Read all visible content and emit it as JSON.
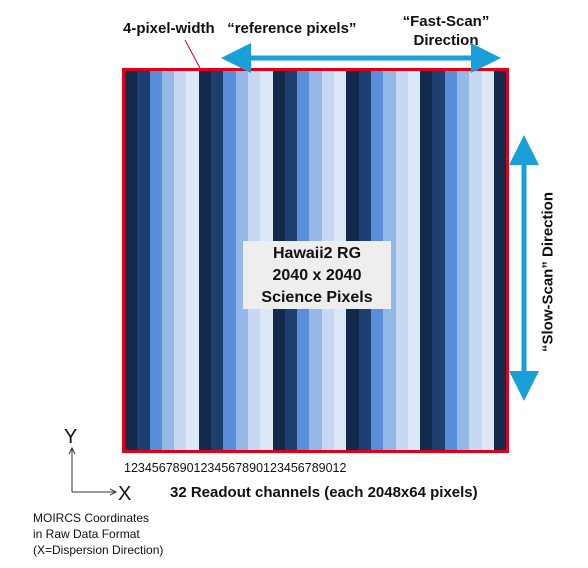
{
  "labels": {
    "reference_prefix": "4-pixel-width",
    "reference_quoted": "“reference pixels”",
    "fast_scan_line1": "“Fast-Scan”",
    "fast_scan_line2": "Direction",
    "slow_scan": "“Slow-Scan”  Direction",
    "science_line1": "Hawaii2 RG",
    "science_line2": "2040 x 2040",
    "science_line3": "Science Pixels",
    "channel_digits": "12345678901234567890123456789012",
    "readout": "32 Readout  channels (each 2048x64 pixels)",
    "axis_y": "Y",
    "axis_x": "X",
    "coord_note_line1": "MOIRCS Coordinates",
    "coord_note_line2": "in Raw Data Format",
    "coord_note_line3": "(X=Dispersion Direction)"
  },
  "colors": {
    "border": "#e0001a",
    "arrow": "#1aa0d8",
    "stripe_cycle": [
      "#13294b",
      "#1d3f70",
      "#5a8ed9",
      "#94b8e8",
      "#c7d9f2",
      "#dce8f7"
    ]
  },
  "readout_channels": 32
}
